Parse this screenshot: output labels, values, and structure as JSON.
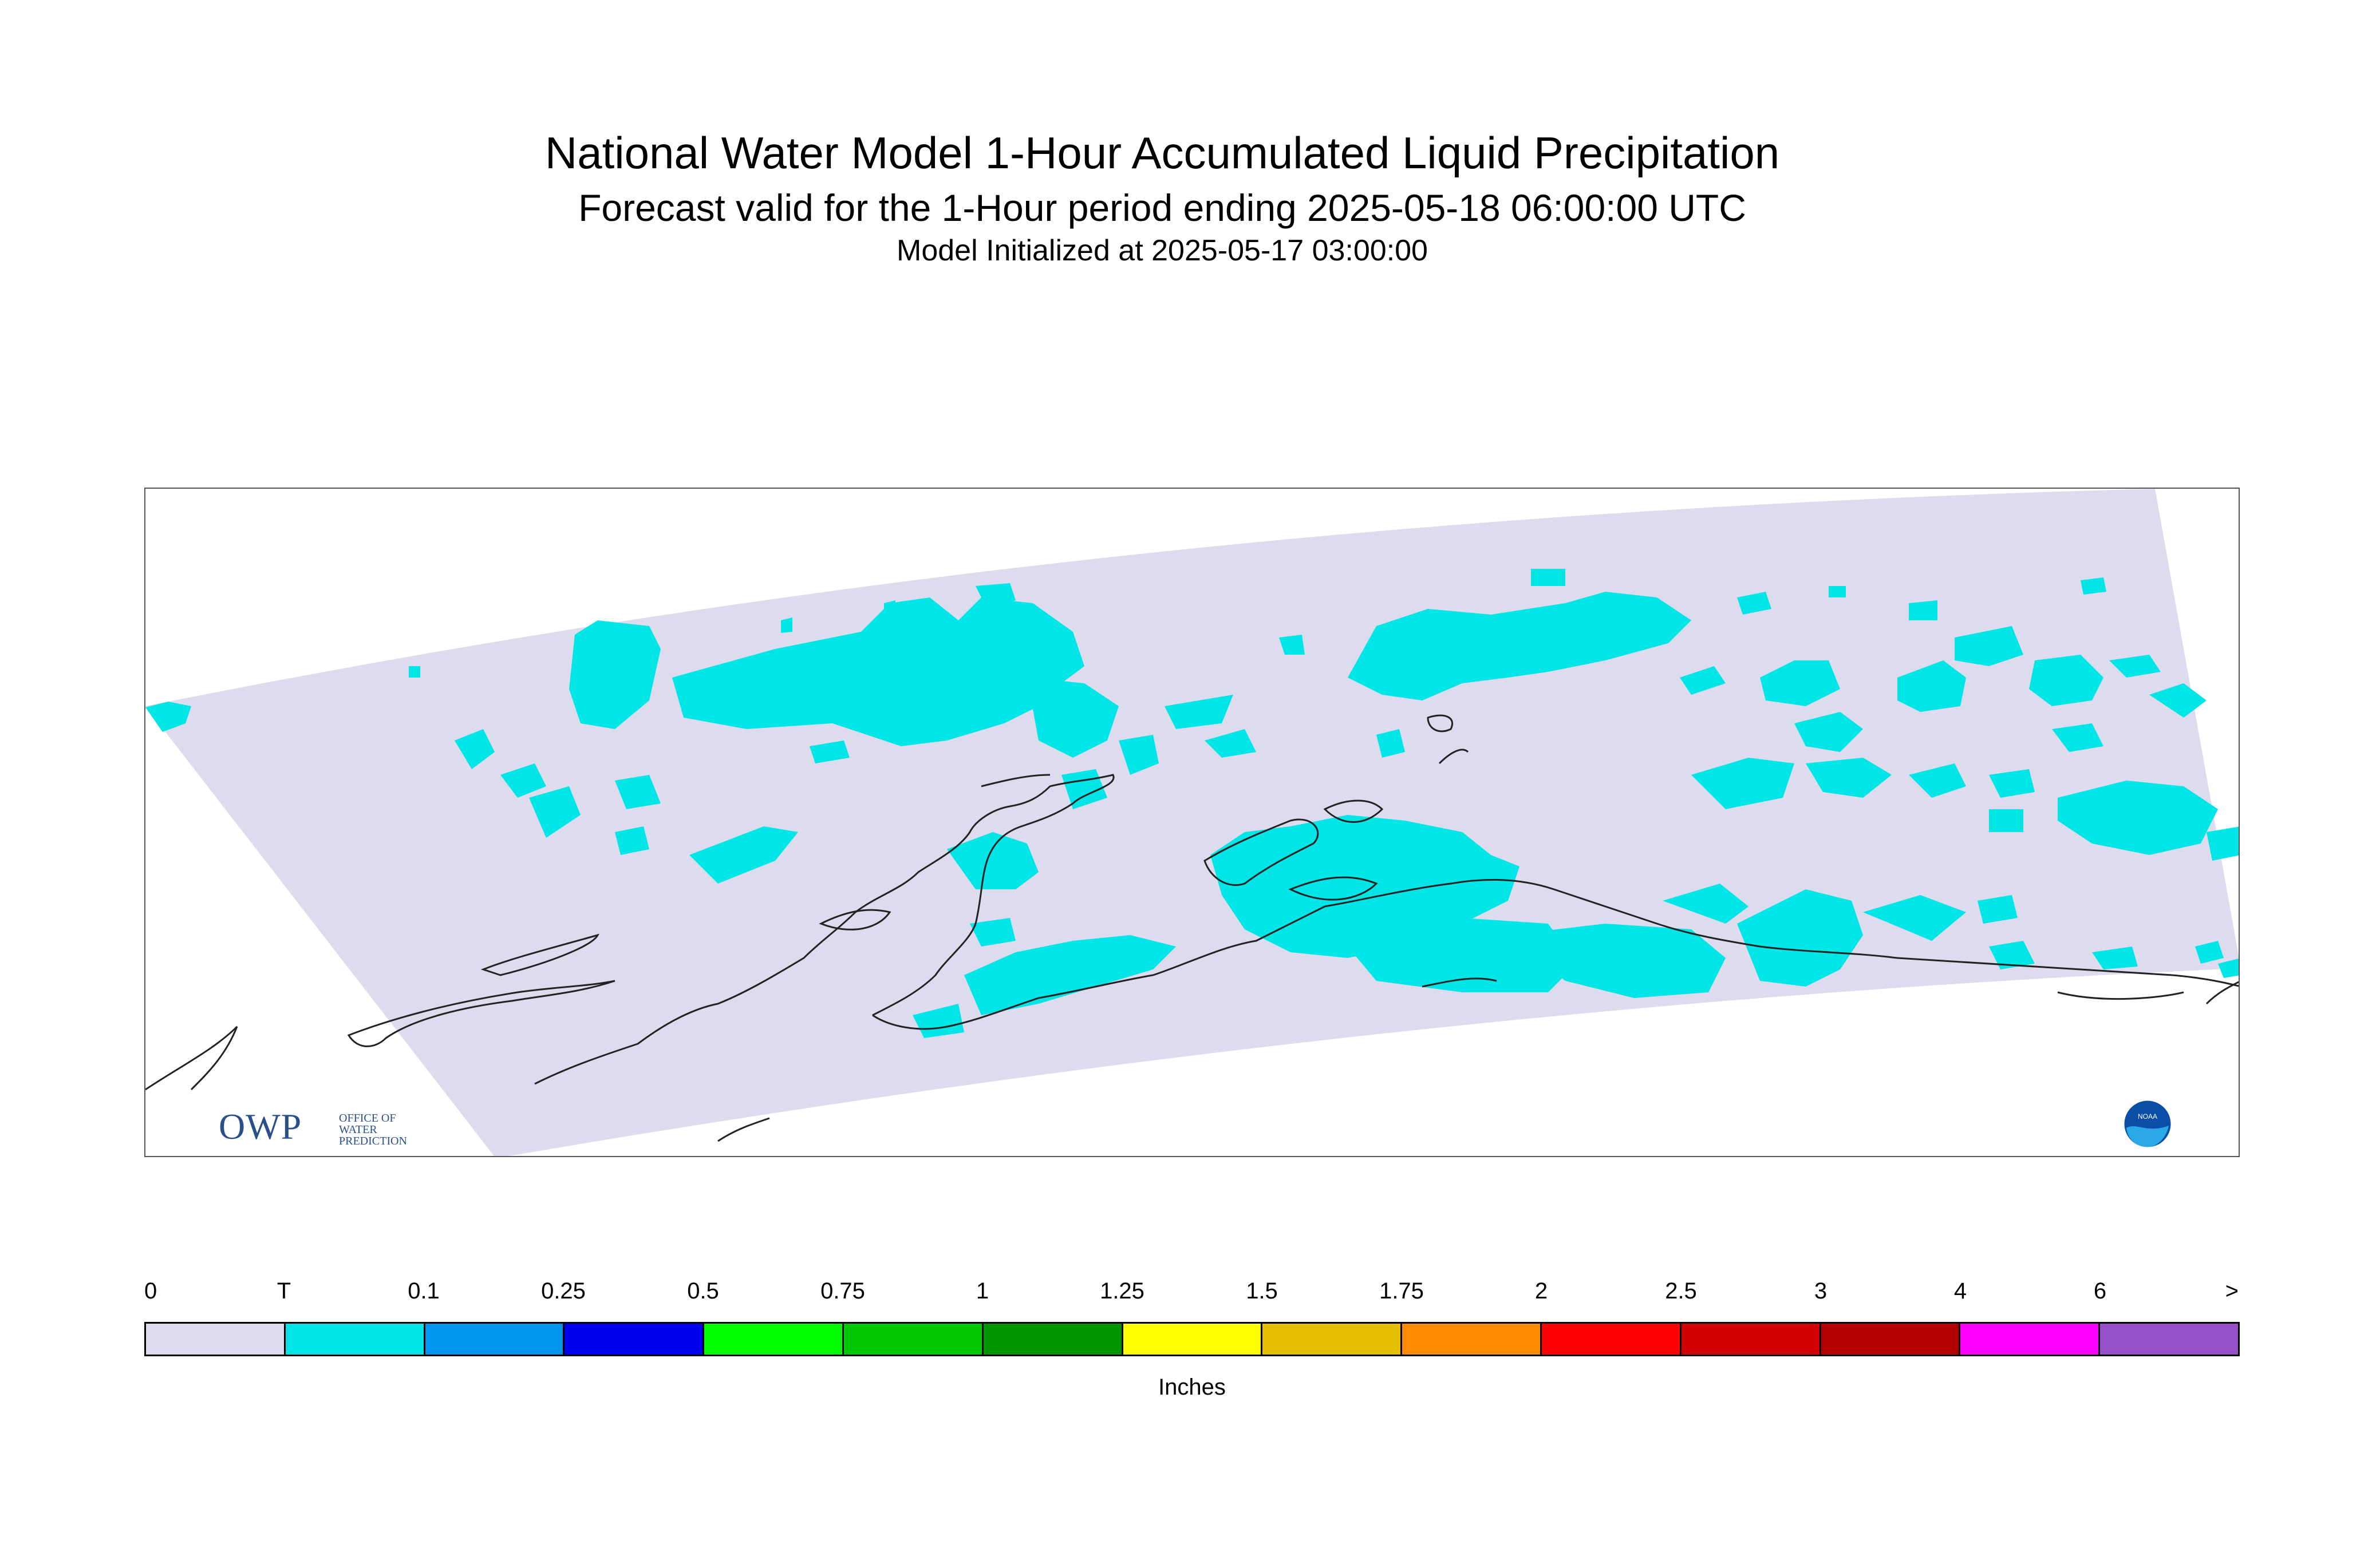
{
  "header": {
    "title": "National Water Model 1-Hour Accumulated Liquid Precipitation",
    "subtitle": "Forecast valid for the 1-Hour period ending 2025-05-18 06:00:00 UTC",
    "init": "Model Initialized at 2025-05-17 03:00:00"
  },
  "logos": {
    "owp": "OWP",
    "owp_sub": [
      "OFFICE OF",
      "WATER",
      "PREDICTION"
    ],
    "noaa": "NOAA"
  },
  "colors": {
    "domain": "#dcdcee",
    "precip_trace": "#00e5e5",
    "coast": "#222222"
  },
  "legend": {
    "labels": [
      "0",
      "T",
      "0.1",
      "0.25",
      "0.5",
      "0.75",
      "1",
      "1.25",
      "1.5",
      "1.75",
      "2",
      "2.5",
      "3",
      "4",
      "6",
      ">"
    ],
    "colors": [
      "#dcdcee",
      "#00e5e5",
      "#0096f0",
      "#0000f0",
      "#00ff00",
      "#00c800",
      "#009600",
      "#ffff00",
      "#e6be00",
      "#ff8c00",
      "#ff0000",
      "#d20000",
      "#b40000",
      "#ff00ff",
      "#9650c8"
    ],
    "units": "Inches"
  }
}
